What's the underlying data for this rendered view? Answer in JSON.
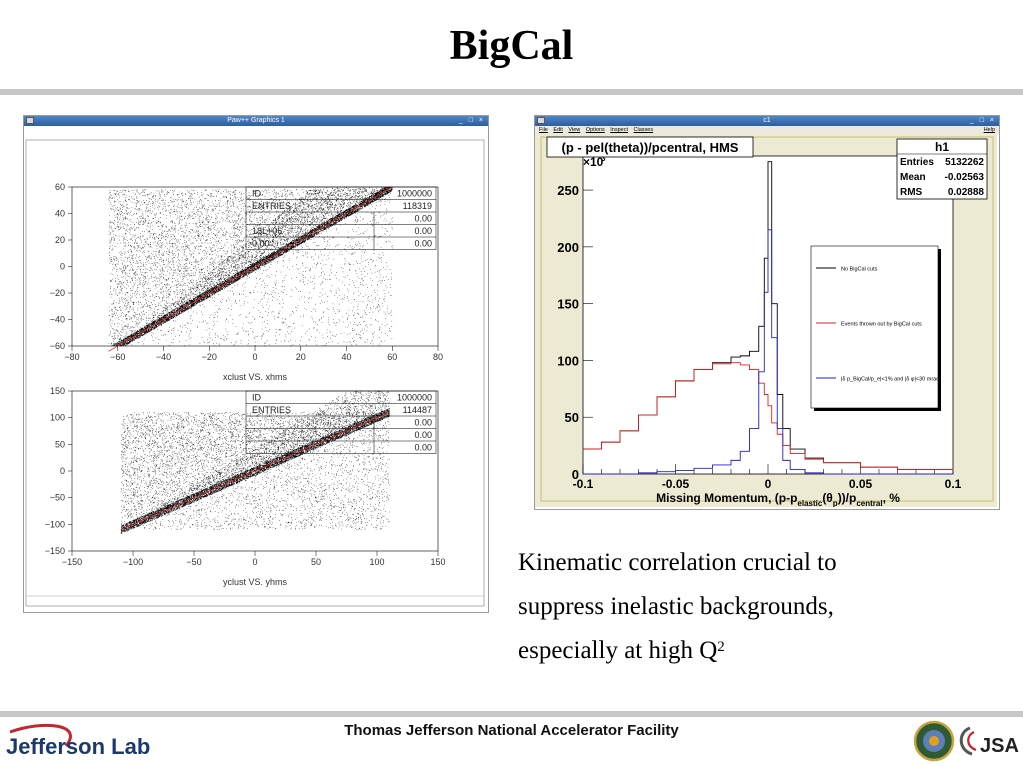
{
  "slide": {
    "title": "BigCal",
    "caption_lines": [
      "Kinematic correlation crucial to",
      "suppress inelastic backgrounds,",
      "especially at high Q"
    ],
    "caption_sup": "2",
    "footer_center": "Thomas Jefferson National Accelerator Facility",
    "footer_logo_text": "Jefferson Lab",
    "footer_right_logo_text": "JSA"
  },
  "paw_window": {
    "title": "Paw++ Graphics 1",
    "buttons": "_ □ ×",
    "top_plot": {
      "xlabel": "xclust VS. xhms",
      "xticks": [
        "−80",
        "−60",
        "−40",
        "−20",
        "0",
        "20",
        "40",
        "60",
        "80"
      ],
      "yticks": [
        "60",
        "40",
        "20",
        "0",
        "−20",
        "−40",
        "−60"
      ],
      "stats": [
        [
          "ID",
          "1000000"
        ],
        [
          "ENTRIES",
          "118319"
        ],
        [
          "",
          "0.00"
        ],
        [
          "18L+06",
          "0.00"
        ],
        [
          "0.00",
          "0.00"
        ]
      ]
    },
    "bottom_plot": {
      "xlabel": "yclust VS. yhms",
      "xticks": [
        "−150",
        "−100",
        "−50",
        "0",
        "50",
        "100",
        "150"
      ],
      "yticks": [
        "150",
        "100",
        "50",
        "0",
        "−50",
        "−100",
        "−150"
      ],
      "stats": [
        [
          "ID",
          "1000000"
        ],
        [
          "ENTRIES",
          "114487"
        ],
        [
          "",
          "0.00"
        ],
        [
          "",
          "0.00"
        ],
        [
          "",
          "0.00"
        ]
      ]
    }
  },
  "root_window": {
    "title": "c1",
    "buttons": "_ □ ×",
    "menu": [
      "File",
      "Edit",
      "View",
      "Options",
      "Inspect",
      "Classes"
    ],
    "help": "Help",
    "hist_title": "(p - pel(theta))/pcentral, HMS",
    "multiplier": "×10",
    "multiplier_exp": "3",
    "stats_title": "h1",
    "stats": [
      [
        "Entries",
        "5132262"
      ],
      [
        "Mean",
        "-0.02563"
      ],
      [
        "RMS",
        "0.02888"
      ]
    ],
    "xlabel": "Missing Momentum, (p-p",
    "xlabel_sub1": "elastic",
    "xlabel_mid": "(θ",
    "xlabel_sub2": "p",
    "xlabel_mid2": "))/p",
    "xlabel_sub3": "central",
    "xlabel_end": ", %",
    "legend": [
      {
        "label": "No BigCal cuts",
        "color": "#000000"
      },
      {
        "label": "Events thrown out by BigCal cuts",
        "color": "#e02020"
      },
      {
        "label": "|δ p_BigCal/p_e|<1% and |δ φ|<30 mrad",
        "color": "#2020d0"
      }
    ]
  },
  "chart_data": {
    "type": "line",
    "title": "(p - pel(theta))/pcentral, HMS",
    "xlabel": "Missing Momentum, (p-p_elastic(θ_p))/p_central, %",
    "ylabel": "",
    "xlim": [
      -0.1,
      0.1
    ],
    "ylim": [
      0,
      280
    ],
    "y_multiplier": "×10^3",
    "xticks": [
      "-0.1",
      "-0.05",
      "0",
      "0.05",
      "0.1"
    ],
    "yticks": [
      "0",
      "50",
      "100",
      "150",
      "200",
      "250"
    ],
    "x": [
      -0.1,
      -0.09,
      -0.08,
      -0.07,
      -0.06,
      -0.05,
      -0.04,
      -0.03,
      -0.02,
      -0.015,
      -0.01,
      -0.005,
      -0.002,
      0,
      0.002,
      0.005,
      0.008,
      0.012,
      0.02,
      0.03,
      0.05,
      0.07,
      0.1
    ],
    "series": [
      {
        "name": "No BigCal cuts",
        "color": "#000000",
        "values": [
          22,
          28,
          38,
          52,
          68,
          82,
          92,
          98,
          103,
          104,
          108,
          130,
          190,
          275,
          150,
          70,
          40,
          22,
          14,
          10,
          6,
          4,
          3
        ]
      },
      {
        "name": "Events thrown out by BigCal cuts",
        "color": "#e02020",
        "values": [
          22,
          28,
          38,
          52,
          68,
          82,
          92,
          97,
          98,
          96,
          92,
          80,
          70,
          60,
          45,
          35,
          25,
          18,
          13,
          10,
          6,
          4,
          3
        ]
      },
      {
        "name": "|δ p_BigCal/p_e|<1% and |δ φ|<30 mrad",
        "color": "#2020d0",
        "values": [
          0,
          0,
          0,
          1,
          2,
          3,
          5,
          8,
          12,
          20,
          40,
          90,
          160,
          215,
          120,
          40,
          12,
          4,
          1,
          0,
          0,
          0,
          0
        ]
      }
    ]
  }
}
